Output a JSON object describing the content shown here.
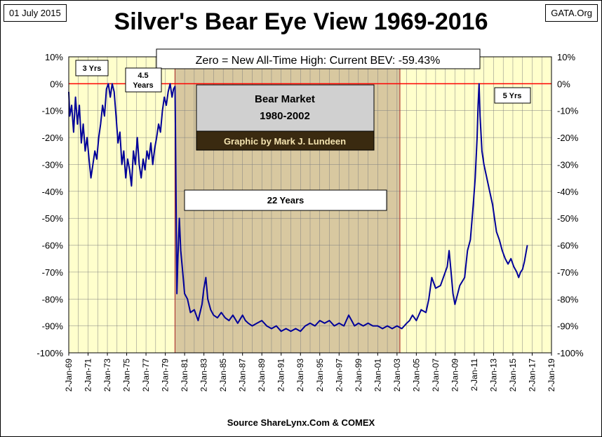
{
  "header": {
    "date": "01 July 2015",
    "source": "GATA.Org",
    "title": "Silver's Bear Eye View 1969-2016"
  },
  "footer": {
    "source": "Source ShareLynx.Com & COMEX"
  },
  "annotations": {
    "current": "Zero = New All-Time High: Current BEV: -59.43%",
    "three_yrs": "3 Yrs",
    "four_five_years": "4.5\nYears",
    "five_yrs": "5 Yrs",
    "bear_market_title": "Bear Market",
    "bear_market_dates": "1980-2002",
    "credit": "Graphic by Mark J. Lundeen",
    "twenty_two_years": "22 Years"
  },
  "colors": {
    "plot_bg": "#ffffcc",
    "bear_shade": "#d8c8a0",
    "line": "#000099",
    "zero_line": "#ff0000",
    "grid": "#808080",
    "credit_bg": "#3a2a10",
    "credit_text": "#f4e4b0"
  },
  "chart_data": {
    "type": "line",
    "title": "Silver's Bear Eye View 1969-2016",
    "xlabel": "",
    "ylabel": "",
    "x_ticks": [
      "2-Jan-69",
      "2-Jan-71",
      "2-Jan-73",
      "2-Jan-75",
      "2-Jan-77",
      "2-Jan-79",
      "2-Jan-81",
      "2-Jan-83",
      "2-Jan-85",
      "2-Jan-87",
      "2-Jan-89",
      "2-Jan-91",
      "2-Jan-93",
      "2-Jan-95",
      "2-Jan-97",
      "2-Jan-99",
      "2-Jan-01",
      "2-Jan-03",
      "2-Jan-05",
      "2-Jan-07",
      "2-Jan-09",
      "2-Jan-11",
      "2-Jan-13",
      "2-Jan-15",
      "2-Jan-17",
      "2-Jan-19"
    ],
    "y_ticks": [
      "10%",
      "0%",
      "-10%",
      "-20%",
      "-30%",
      "-40%",
      "-50%",
      "-60%",
      "-70%",
      "-80%",
      "-90%",
      "-100%"
    ],
    "xlim": [
      1969.0,
      2019.0
    ],
    "ylim": [
      -100,
      10
    ],
    "reference_line": 0,
    "shaded_region": [
      1980.0,
      2003.3
    ],
    "series": [
      {
        "x": [
          1969.0,
          1969.1,
          1969.3,
          1969.5,
          1969.7,
          1969.9,
          1970.1,
          1970.3,
          1970.5,
          1970.7,
          1970.9,
          1971.1,
          1971.3,
          1971.5,
          1971.7,
          1971.9,
          1972.1,
          1972.3,
          1972.5,
          1972.7,
          1972.9,
          1973.1,
          1973.3,
          1973.5,
          1973.7,
          1973.9,
          1974.1,
          1974.3,
          1974.5,
          1974.7,
          1974.9,
          1975.1,
          1975.3,
          1975.5,
          1975.7,
          1975.9,
          1976.1,
          1976.3,
          1976.5,
          1976.7,
          1976.9,
          1977.1,
          1977.3,
          1977.5,
          1977.7,
          1977.9,
          1978.1,
          1978.3,
          1978.5,
          1978.7,
          1978.9,
          1979.1,
          1979.3,
          1979.5,
          1979.7,
          1979.85,
          1980.0,
          1980.05,
          1980.12,
          1980.2,
          1980.3,
          1980.45,
          1980.6,
          1980.8,
          1981.0,
          1981.3,
          1981.6,
          1982.0,
          1982.4,
          1982.8,
          1983.0,
          1983.2,
          1983.4,
          1983.7,
          1984.0,
          1984.4,
          1984.8,
          1985.2,
          1985.6,
          1986.0,
          1986.5,
          1987.0,
          1987.3,
          1987.6,
          1988.0,
          1988.5,
          1989.0,
          1989.5,
          1990.0,
          1990.5,
          1991.0,
          1991.5,
          1992.0,
          1992.5,
          1993.0,
          1993.5,
          1994.0,
          1994.5,
          1995.0,
          1995.5,
          1996.0,
          1996.5,
          1997.0,
          1997.5,
          1998.0,
          1998.3,
          1998.6,
          1999.0,
          1999.5,
          2000.0,
          2000.5,
          2001.0,
          2001.5,
          2002.0,
          2002.5,
          2003.0,
          2003.5,
          2004.0,
          2004.3,
          2004.6,
          2005.0,
          2005.5,
          2006.0,
          2006.3,
          2006.6,
          2007.0,
          2007.5,
          2008.0,
          2008.2,
          2008.4,
          2008.6,
          2008.8,
          2009.0,
          2009.5,
          2010.0,
          2010.3,
          2010.6,
          2010.9,
          2011.1,
          2011.3,
          2011.4,
          2011.5,
          2011.6,
          2011.8,
          2012.0,
          2012.3,
          2012.6,
          2012.9,
          2013.1,
          2013.3,
          2013.6,
          2013.9,
          2014.2,
          2014.5,
          2014.8,
          2015.1,
          2015.4,
          2015.6,
          2015.8,
          2016.0,
          2016.2,
          2016.4,
          2016.5
        ],
        "y": [
          -3,
          -12,
          -8,
          -18,
          -5,
          -15,
          -8,
          -22,
          -15,
          -25,
          -20,
          -28,
          -35,
          -30,
          -25,
          -28,
          -20,
          -15,
          -8,
          -12,
          -2,
          0,
          -5,
          0,
          -3,
          -12,
          -22,
          -18,
          -30,
          -25,
          -35,
          -28,
          -32,
          -38,
          -25,
          -30,
          -20,
          -30,
          -35,
          -28,
          -32,
          -25,
          -28,
          -22,
          -30,
          -24,
          -20,
          -15,
          -18,
          -10,
          -5,
          -8,
          -3,
          0,
          -5,
          -2,
          -1,
          -15,
          -45,
          -78,
          -65,
          -50,
          -62,
          -70,
          -78,
          -80,
          -85,
          -84,
          -88,
          -82,
          -76,
          -72,
          -80,
          -84,
          -86,
          -87,
          -85,
          -87,
          -88,
          -86,
          -89,
          -86,
          -88,
          -89,
          -90,
          -89,
          -88,
          -90,
          -91,
          -90,
          -92,
          -91,
          -92,
          -91,
          -92,
          -90,
          -89,
          -90,
          -88,
          -89,
          -88,
          -90,
          -89,
          -90,
          -86,
          -88,
          -90,
          -89,
          -90,
          -89,
          -90,
          -90,
          -91,
          -90,
          -91,
          -90,
          -91,
          -89,
          -88,
          -86,
          -88,
          -84,
          -85,
          -80,
          -72,
          -76,
          -75,
          -70,
          -68,
          -62,
          -70,
          -78,
          -82,
          -75,
          -72,
          -62,
          -58,
          -45,
          -35,
          -20,
          -8,
          0,
          -12,
          -25,
          -30,
          -35,
          -40,
          -45,
          -50,
          -55,
          -58,
          -62,
          -65,
          -67,
          -65,
          -68,
          -70,
          -72,
          -70,
          -69,
          -66,
          -62,
          -60
        ]
      }
    ]
  }
}
